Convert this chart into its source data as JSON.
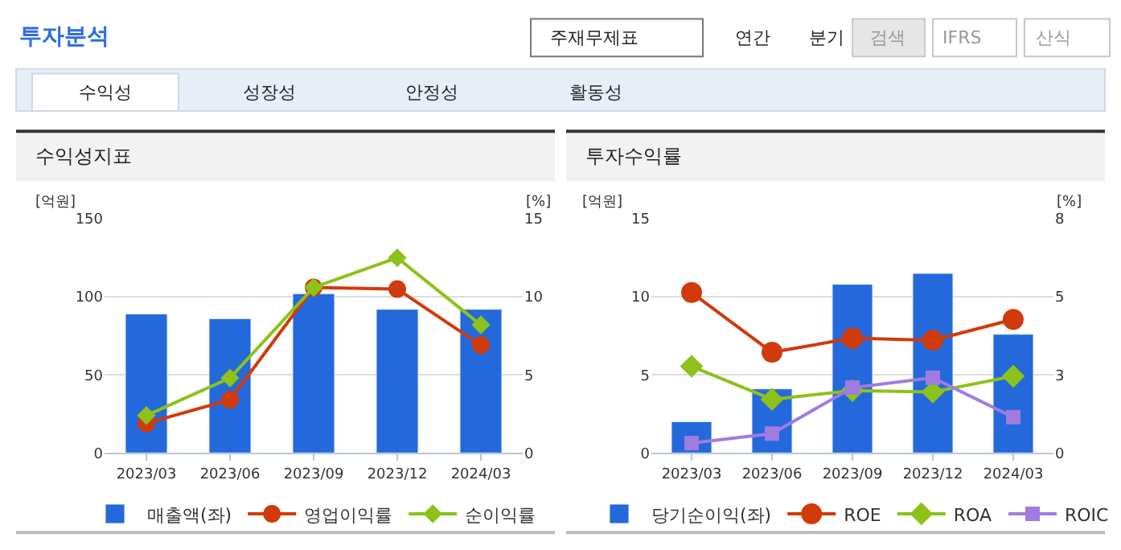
{
  "chart_data": [
    {
      "type": "other",
      "title": "투자분석",
      "annotations": [
        "주재무제표",
        "연간",
        "분기",
        "검색",
        "IFRS",
        "산식",
        "수익성",
        "성장성",
        "안정성",
        "활동성"
      ]
    },
    {
      "type": "bar",
      "title": "수익성지표",
      "ylabel": "[억원]",
      "y2label": "[%]",
      "categories": [
        "2023/03",
        "2023/06",
        "2023/09",
        "2023/12",
        "2024/03"
      ],
      "ylim": [
        0,
        150
      ],
      "yticks": [
        0,
        50,
        100,
        150
      ],
      "y2lim": [
        0,
        15
      ],
      "y2ticks": [
        0,
        5,
        10,
        15
      ],
      "grid": "y",
      "legend": "bottom",
      "series": [
        {
          "name": "매출액(좌)",
          "type": "bar",
          "color": "#2369db",
          "values": [
            89,
            86,
            102,
            92,
            92
          ]
        },
        {
          "name": "영업이익률",
          "type": "line",
          "axis": "y2",
          "marker": "circle",
          "color": "#d13a0a",
          "values": [
            1.9,
            3.4,
            10.6,
            10.5,
            6.9
          ]
        },
        {
          "name": "순이익률",
          "type": "line",
          "axis": "y2",
          "marker": "diamond",
          "color": "#8cc21a",
          "values": [
            2.4,
            4.8,
            10.6,
            12.5,
            8.2
          ]
        }
      ]
    },
    {
      "type": "bar",
      "title": "투자수익률",
      "ylabel": "[억원]",
      "y2label": "[%]",
      "categories": [
        "2023/03",
        "2023/06",
        "2023/09",
        "2023/12",
        "2024/03"
      ],
      "ylim": [
        0,
        15
      ],
      "yticks": [
        0,
        5,
        10,
        15
      ],
      "y2lim": [
        0,
        8
      ],
      "y2ticks": [
        0,
        {
          "value": 2.6667,
          "label": "3"
        },
        {
          "value": 5.3333,
          "label": "5"
        },
        8
      ],
      "grid": "y",
      "legend": "bottom",
      "series": [
        {
          "name": "당기순이익(좌)",
          "type": "bar",
          "color": "#2369db",
          "values": [
            2.0,
            4.1,
            10.8,
            11.5,
            7.6
          ]
        },
        {
          "name": "ROE",
          "type": "line",
          "axis": "y2",
          "marker": "circle",
          "color": "#d13a0a",
          "values": [
            5.48,
            3.44,
            3.92,
            3.85,
            4.56
          ]
        },
        {
          "name": "ROA",
          "type": "line",
          "axis": "y2",
          "marker": "diamond",
          "color": "#8cc21a",
          "values": [
            2.96,
            1.83,
            2.13,
            2.08,
            2.62
          ]
        },
        {
          "name": "ROIC",
          "type": "line",
          "axis": "y2",
          "marker": "square",
          "color": "#a07be0",
          "values": [
            0.34,
            0.66,
            2.23,
            2.57,
            1.22
          ]
        }
      ]
    }
  ]
}
